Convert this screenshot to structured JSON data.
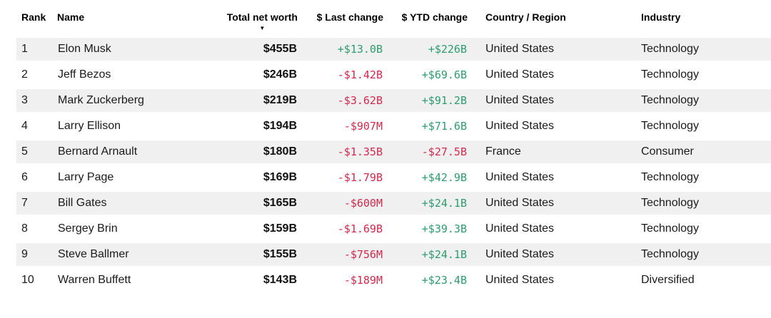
{
  "table": {
    "sort_indicator": "▼",
    "sorted_column": "Total net worth",
    "sort_direction": "descending",
    "columns": [
      {
        "label": "Rank"
      },
      {
        "label": "Name"
      },
      {
        "label": "Total net worth"
      },
      {
        "label": "$ Last change"
      },
      {
        "label": "$ YTD change"
      },
      {
        "label": "Country / Region"
      },
      {
        "label": "Industry"
      }
    ],
    "rows": [
      {
        "rank": "1",
        "name": "Elon Musk",
        "net_worth": "$455B",
        "last_change": "+$13.0B",
        "ytd_change": "+$226B",
        "country": "United States",
        "industry": "Technology"
      },
      {
        "rank": "2",
        "name": "Jeff Bezos",
        "net_worth": "$246B",
        "last_change": "-$1.42B",
        "ytd_change": "+$69.6B",
        "country": "United States",
        "industry": "Technology"
      },
      {
        "rank": "3",
        "name": "Mark Zuckerberg",
        "net_worth": "$219B",
        "last_change": "-$3.62B",
        "ytd_change": "+$91.2B",
        "country": "United States",
        "industry": "Technology"
      },
      {
        "rank": "4",
        "name": "Larry Ellison",
        "net_worth": "$194B",
        "last_change": "-$907M",
        "ytd_change": "+$71.6B",
        "country": "United States",
        "industry": "Technology"
      },
      {
        "rank": "5",
        "name": "Bernard Arnault",
        "net_worth": "$180B",
        "last_change": "-$1.35B",
        "ytd_change": "-$27.5B",
        "country": "France",
        "industry": "Consumer"
      },
      {
        "rank": "6",
        "name": "Larry Page",
        "net_worth": "$169B",
        "last_change": "-$1.79B",
        "ytd_change": "+$42.9B",
        "country": "United States",
        "industry": "Technology"
      },
      {
        "rank": "7",
        "name": "Bill Gates",
        "net_worth": "$165B",
        "last_change": "-$600M",
        "ytd_change": "+$24.1B",
        "country": "United States",
        "industry": "Technology"
      },
      {
        "rank": "8",
        "name": "Sergey Brin",
        "net_worth": "$159B",
        "last_change": "-$1.69B",
        "ytd_change": "+$39.3B",
        "country": "United States",
        "industry": "Technology"
      },
      {
        "rank": "9",
        "name": "Steve Ballmer",
        "net_worth": "$155B",
        "last_change": "-$756M",
        "ytd_change": "+$24.1B",
        "country": "United States",
        "industry": "Technology"
      },
      {
        "rank": "10",
        "name": "Warren Buffett",
        "net_worth": "$143B",
        "last_change": "-$189M",
        "ytd_change": "+$23.4B",
        "country": "United States",
        "industry": "Diversified"
      }
    ]
  },
  "colors": {
    "positive": "#2d9c6e",
    "negative": "#d5294d",
    "row_stripe": "#f0f0f0",
    "text": "#1a1a1a"
  }
}
